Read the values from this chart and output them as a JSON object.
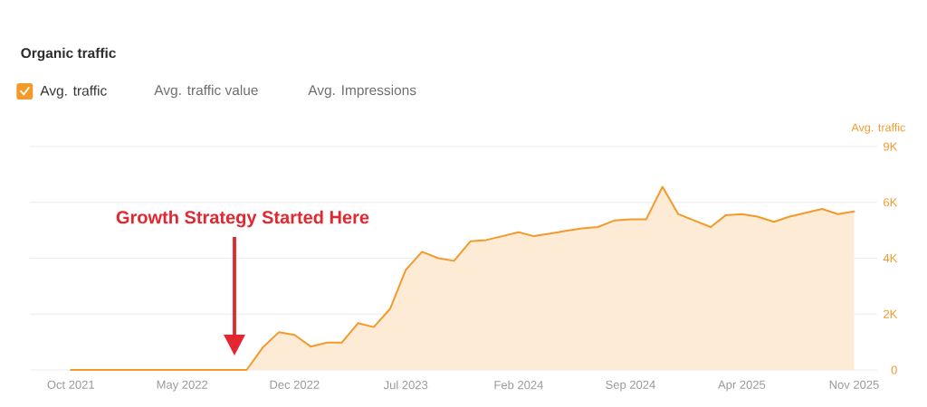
{
  "chart_data": {
    "type": "area",
    "title": "Organic traffic",
    "ylabel": "Avg. traffic",
    "x": [
      "2021-10",
      "2021-11",
      "2021-12",
      "2022-01",
      "2022-02",
      "2022-03",
      "2022-04",
      "2022-05",
      "2022-06",
      "2022-07",
      "2022-08",
      "2022-09",
      "2022-10",
      "2022-11",
      "2022-12",
      "2023-01",
      "2023-02",
      "2023-03",
      "2023-04",
      "2023-05",
      "2023-06",
      "2023-07",
      "2023-08",
      "2023-09",
      "2023-10",
      "2023-11",
      "2023-12",
      "2024-01",
      "2024-02",
      "2024-03",
      "2024-04",
      "2024-05",
      "2024-06",
      "2024-07",
      "2024-08",
      "2024-09",
      "2024-10",
      "2024-11",
      "2024-12",
      "2025-01",
      "2025-02",
      "2025-03",
      "2025-04",
      "2025-05",
      "2025-06",
      "2025-07",
      "2025-08",
      "2025-09",
      "2025-10",
      "2025-11"
    ],
    "series": [
      {
        "name": "Avg. traffic",
        "color": "#f39a2b",
        "values": [
          0,
          0,
          0,
          0,
          0,
          0,
          0,
          0,
          0,
          0,
          0,
          0,
          850,
          1450,
          1350,
          900,
          1050,
          1050,
          1800,
          1650,
          2350,
          3850,
          4550,
          4300,
          4200,
          4950,
          5000,
          5150,
          5300,
          5150,
          5250,
          5350,
          5450,
          5500,
          5750,
          5800,
          5800,
          7050,
          6000,
          5750,
          5500,
          5950,
          6000,
          5900,
          5700,
          5900,
          6050,
          6200,
          6000,
          6100
        ]
      }
    ],
    "xlim": [
      "2021-07-15",
      "2025-12-15"
    ],
    "xticks": [
      {
        "value": "2021-10",
        "label": "Oct 2021"
      },
      {
        "value": "2022-05",
        "label": "May 2022"
      },
      {
        "value": "2022-12",
        "label": "Dec 2022"
      },
      {
        "value": "2023-07",
        "label": "Jul 2023"
      },
      {
        "value": "2024-02",
        "label": "Feb 2024"
      },
      {
        "value": "2024-09",
        "label": "Sep 2024"
      },
      {
        "value": "2025-04",
        "label": "Apr 2025"
      },
      {
        "value": "2025-11",
        "label": "Nov 2025"
      }
    ],
    "ylim": [
      0,
      8600
    ],
    "yticks": [
      0,
      {
        "value": 2150,
        "label": "2K"
      },
      {
        "value": 4300,
        "label": "4K"
      },
      {
        "value": 6450,
        "label": "6K"
      },
      {
        "value": 8600,
        "label": "9K"
      }
    ],
    "grid": "y",
    "legend": "top left",
    "annotations": [
      "Avg. traffic value",
      "Avg. Impressions",
      "Growth Strategy Started Here"
    ]
  }
}
